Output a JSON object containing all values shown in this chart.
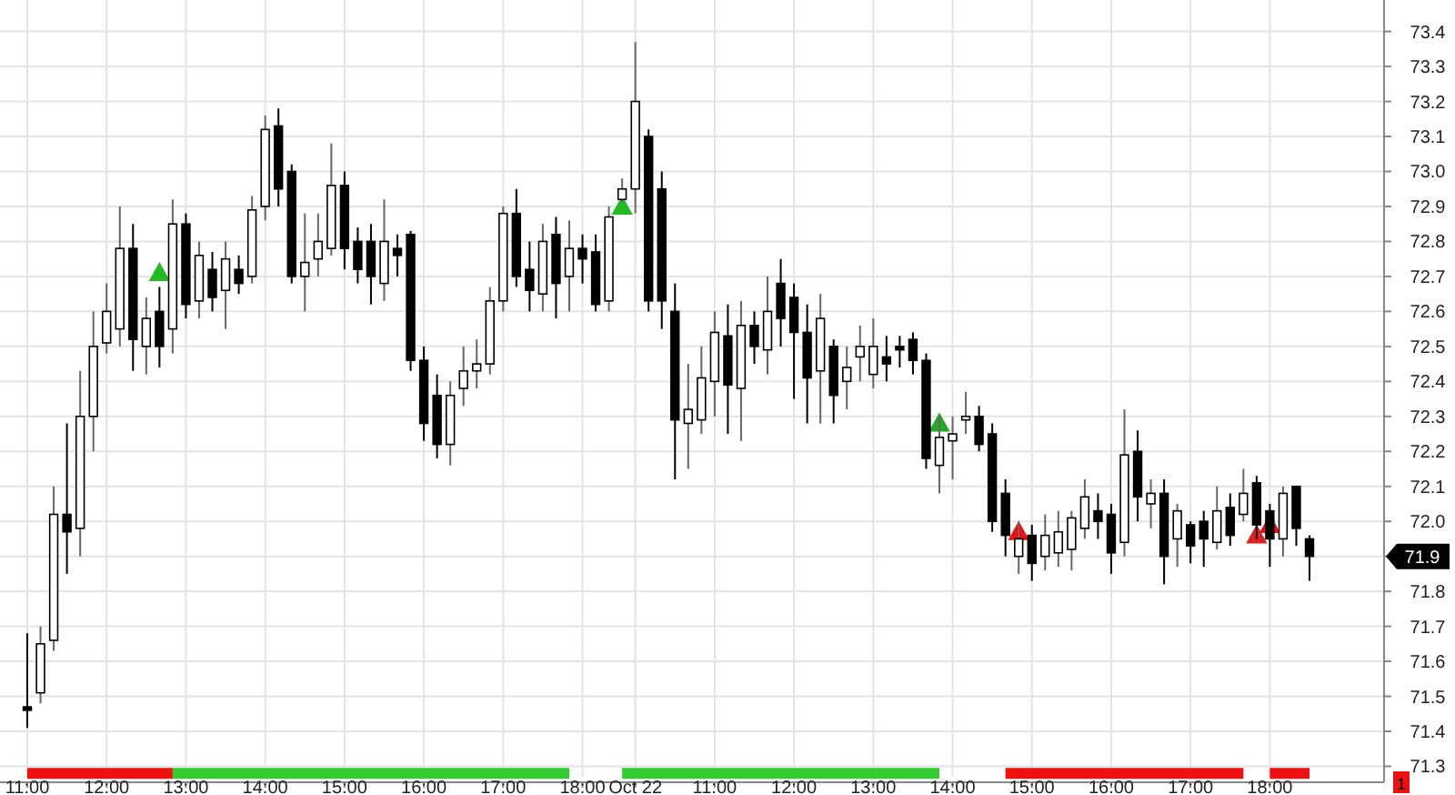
{
  "chart_data": {
    "type": "candlestick",
    "categories": [
      "11:00",
      null,
      null,
      null,
      null,
      null,
      "12:00",
      null,
      null,
      null,
      null,
      null,
      "13:00",
      null,
      null,
      null,
      null,
      null,
      "14:00",
      null,
      null,
      null,
      null,
      null,
      "15:00",
      null,
      null,
      null,
      null,
      null,
      "16:00",
      null,
      null,
      null,
      null,
      null,
      "17:00",
      null,
      null,
      null,
      null,
      null,
      "18:00",
      null,
      null,
      null,
      "Oct 22",
      null,
      null,
      null,
      null,
      null,
      "11:00",
      null,
      null,
      null,
      null,
      null,
      "12:00",
      null,
      null,
      null,
      null,
      null,
      "13:00",
      null,
      null,
      null,
      null,
      null,
      "14:00",
      null,
      null,
      null,
      null,
      null,
      "15:00",
      null,
      null,
      null,
      null,
      null,
      "16:00",
      null,
      null,
      null,
      null,
      null,
      "17:00",
      null,
      null,
      null,
      null,
      null,
      "18:00",
      null,
      null,
      null
    ],
    "ohlc": [
      [
        71.47,
        71.68,
        71.41,
        71.46
      ],
      [
        71.51,
        71.7,
        71.48,
        71.65
      ],
      [
        71.66,
        72.1,
        71.63,
        72.02
      ],
      [
        72.02,
        72.28,
        71.85,
        71.97
      ],
      [
        71.98,
        72.43,
        71.9,
        72.3
      ],
      [
        72.3,
        72.6,
        72.2,
        72.5
      ],
      [
        72.51,
        72.68,
        72.48,
        72.6
      ],
      [
        72.55,
        72.9,
        72.5,
        72.78
      ],
      [
        72.78,
        72.85,
        72.43,
        72.52
      ],
      [
        72.5,
        72.64,
        72.42,
        72.58
      ],
      [
        72.6,
        72.67,
        72.44,
        72.5
      ],
      [
        72.55,
        72.92,
        72.48,
        72.85
      ],
      [
        72.85,
        72.88,
        72.58,
        72.62
      ],
      [
        72.63,
        72.8,
        72.58,
        72.76
      ],
      [
        72.72,
        72.77,
        72.6,
        72.64
      ],
      [
        72.66,
        72.8,
        72.55,
        72.75
      ],
      [
        72.72,
        72.76,
        72.65,
        72.68
      ],
      [
        72.7,
        72.93,
        72.68,
        72.89
      ],
      [
        72.9,
        73.16,
        72.86,
        73.12
      ],
      [
        73.13,
        73.18,
        72.9,
        72.95
      ],
      [
        73.0,
        73.02,
        72.68,
        72.7
      ],
      [
        72.7,
        72.88,
        72.6,
        72.74
      ],
      [
        72.75,
        72.88,
        72.7,
        72.8
      ],
      [
        72.78,
        73.08,
        72.76,
        72.96
      ],
      [
        72.96,
        73.0,
        72.72,
        72.78
      ],
      [
        72.8,
        72.84,
        72.68,
        72.72
      ],
      [
        72.8,
        72.85,
        72.62,
        72.7
      ],
      [
        72.68,
        72.92,
        72.63,
        72.8
      ],
      [
        72.78,
        72.82,
        72.7,
        72.76
      ],
      [
        72.82,
        72.83,
        72.43,
        72.46
      ],
      [
        72.46,
        72.5,
        72.23,
        72.28
      ],
      [
        72.36,
        72.42,
        72.18,
        72.22
      ],
      [
        72.22,
        72.4,
        72.16,
        72.36
      ],
      [
        72.38,
        72.5,
        72.33,
        72.43
      ],
      [
        72.43,
        72.52,
        72.38,
        72.45
      ],
      [
        72.45,
        72.67,
        72.42,
        72.63
      ],
      [
        72.63,
        72.9,
        72.6,
        72.88
      ],
      [
        72.88,
        72.95,
        72.67,
        72.7
      ],
      [
        72.72,
        72.8,
        72.6,
        72.66
      ],
      [
        72.65,
        72.85,
        72.6,
        72.8
      ],
      [
        72.82,
        72.87,
        72.58,
        72.68
      ],
      [
        72.7,
        72.86,
        72.6,
        72.78
      ],
      [
        72.78,
        72.82,
        72.68,
        72.75
      ],
      [
        72.77,
        72.82,
        72.6,
        72.62
      ],
      [
        72.63,
        72.9,
        72.6,
        72.87
      ],
      [
        72.92,
        72.98,
        72.91,
        72.95
      ],
      [
        72.95,
        73.37,
        72.88,
        73.2
      ],
      [
        73.1,
        73.12,
        72.6,
        72.63
      ],
      [
        72.95,
        73.0,
        72.55,
        72.63
      ],
      [
        72.6,
        72.68,
        72.12,
        72.29
      ],
      [
        72.28,
        72.45,
        72.15,
        72.32
      ],
      [
        72.29,
        72.5,
        72.25,
        72.41
      ],
      [
        72.4,
        72.6,
        72.3,
        72.54
      ],
      [
        72.53,
        72.62,
        72.25,
        72.39
      ],
      [
        72.38,
        72.63,
        72.23,
        72.56
      ],
      [
        72.56,
        72.6,
        72.45,
        72.5
      ],
      [
        72.49,
        72.7,
        72.42,
        72.6
      ],
      [
        72.68,
        72.75,
        72.5,
        72.58
      ],
      [
        72.64,
        72.68,
        72.35,
        72.54
      ],
      [
        72.54,
        72.62,
        72.28,
        72.41
      ],
      [
        72.43,
        72.65,
        72.28,
        72.58
      ],
      [
        72.5,
        72.52,
        72.28,
        72.36
      ],
      [
        72.4,
        72.5,
        72.32,
        72.44
      ],
      [
        72.47,
        72.56,
        72.4,
        72.5
      ],
      [
        72.42,
        72.58,
        72.38,
        72.5
      ],
      [
        72.47,
        72.53,
        72.4,
        72.45
      ],
      [
        72.5,
        72.53,
        72.44,
        72.49
      ],
      [
        72.52,
        72.54,
        72.42,
        72.46
      ],
      [
        72.46,
        72.48,
        72.15,
        72.18
      ],
      [
        72.16,
        72.3,
        72.08,
        72.24
      ],
      [
        72.23,
        72.3,
        72.12,
        72.25
      ],
      [
        72.29,
        72.37,
        72.25,
        72.3
      ],
      [
        72.3,
        72.33,
        72.2,
        72.22
      ],
      [
        72.25,
        72.28,
        71.97,
        72.0
      ],
      [
        72.08,
        72.12,
        71.9,
        71.96
      ],
      [
        71.9,
        72.0,
        71.85,
        71.95
      ],
      [
        71.96,
        71.99,
        71.83,
        71.88
      ],
      [
        71.9,
        72.02,
        71.86,
        71.96
      ],
      [
        71.91,
        72.03,
        71.87,
        71.97
      ],
      [
        71.92,
        72.03,
        71.86,
        72.01
      ],
      [
        71.98,
        72.12,
        71.95,
        72.07
      ],
      [
        72.03,
        72.08,
        71.95,
        72.0
      ],
      [
        72.02,
        72.05,
        71.85,
        71.91
      ],
      [
        71.94,
        72.32,
        71.9,
        72.19
      ],
      [
        72.2,
        72.26,
        72.0,
        72.07
      ],
      [
        72.05,
        72.12,
        71.98,
        72.08
      ],
      [
        72.08,
        72.12,
        71.82,
        71.9
      ],
      [
        71.95,
        72.05,
        71.87,
        72.03
      ],
      [
        71.99,
        72.0,
        71.88,
        71.93
      ],
      [
        72.0,
        72.03,
        71.87,
        71.95
      ],
      [
        71.94,
        72.1,
        71.92,
        72.03
      ],
      [
        72.04,
        72.08,
        71.93,
        71.96
      ],
      [
        72.02,
        72.15,
        72.0,
        72.08
      ],
      [
        72.11,
        72.13,
        71.95,
        71.99
      ],
      [
        72.03,
        72.05,
        71.87,
        71.95
      ],
      [
        71.95,
        72.1,
        71.9,
        72.08
      ],
      [
        72.1,
        72.1,
        71.93,
        71.98
      ],
      [
        71.95,
        71.96,
        71.83,
        71.9
      ]
    ],
    "series": [
      {
        "type": "scatter",
        "color": "#22bb22",
        "marker": "triangle",
        "values": [
          null,
          null,
          null,
          null,
          null,
          null,
          null,
          null,
          null,
          null,
          72.71,
          null,
          null,
          null,
          null,
          null,
          null,
          null,
          null,
          null,
          null,
          null,
          null,
          null,
          null,
          null,
          null,
          null,
          null,
          null,
          null,
          null,
          null,
          null,
          null,
          null,
          null,
          null,
          null,
          null,
          null,
          null,
          null,
          null,
          null,
          72.9,
          null,
          null,
          null,
          null,
          null,
          null,
          null,
          null,
          null,
          null,
          null,
          null,
          null,
          null,
          null,
          null,
          null,
          null,
          null,
          null,
          null,
          null,
          null,
          null,
          null,
          null,
          null,
          null,
          null,
          null,
          null,
          null,
          null,
          null,
          null,
          null,
          null,
          null,
          null,
          null,
          null,
          null,
          null,
          null,
          null,
          null,
          null,
          null,
          null,
          null,
          null,
          null
        ]
      },
      {
        "type": "scatter",
        "color": "#22aa22",
        "marker": "triangle",
        "values": [
          null,
          null,
          null,
          null,
          null,
          null,
          null,
          null,
          null,
          null,
          null,
          null,
          null,
          null,
          null,
          null,
          null,
          null,
          null,
          null,
          null,
          null,
          null,
          null,
          null,
          null,
          null,
          null,
          null,
          null,
          null,
          null,
          null,
          null,
          null,
          null,
          null,
          null,
          null,
          null,
          null,
          null,
          null,
          null,
          null,
          null,
          null,
          null,
          null,
          null,
          null,
          null,
          null,
          null,
          null,
          null,
          null,
          null,
          null,
          null,
          null,
          null,
          null,
          null,
          null,
          null,
          null,
          null,
          null,
          72.28,
          null,
          null,
          null,
          null,
          null,
          null,
          null,
          null,
          null,
          null,
          null,
          null,
          null,
          null,
          null,
          null,
          null,
          null,
          null,
          null,
          null,
          null,
          null,
          null,
          null,
          null,
          null,
          null
        ]
      },
      {
        "type": "scatter",
        "color": "#ee1111",
        "marker": "triangle",
        "values": [
          null,
          null,
          null,
          null,
          null,
          null,
          null,
          null,
          null,
          null,
          null,
          null,
          null,
          null,
          null,
          null,
          null,
          null,
          null,
          null,
          null,
          null,
          null,
          null,
          null,
          null,
          null,
          null,
          null,
          null,
          null,
          null,
          null,
          null,
          null,
          null,
          null,
          null,
          null,
          null,
          null,
          null,
          null,
          null,
          null,
          null,
          null,
          null,
          null,
          null,
          null,
          null,
          null,
          null,
          null,
          null,
          null,
          null,
          null,
          null,
          null,
          null,
          null,
          null,
          null,
          null,
          null,
          null,
          null,
          null,
          null,
          null,
          null,
          null,
          null,
          71.97,
          null,
          null,
          null,
          null,
          null,
          null,
          null,
          null,
          null,
          null,
          null,
          null,
          null,
          null,
          null,
          null,
          null,
          null,
          71.99,
          null,
          null,
          null
        ]
      },
      {
        "type": "scatter",
        "color": "#dd2222",
        "marker": "triangle",
        "values": [
          null,
          null,
          null,
          null,
          null,
          null,
          null,
          null,
          null,
          null,
          null,
          null,
          null,
          null,
          null,
          null,
          null,
          null,
          null,
          null,
          null,
          null,
          null,
          null,
          null,
          null,
          null,
          null,
          null,
          null,
          null,
          null,
          null,
          null,
          null,
          null,
          null,
          null,
          null,
          null,
          null,
          null,
          null,
          null,
          null,
          null,
          null,
          null,
          null,
          null,
          null,
          null,
          null,
          null,
          null,
          null,
          null,
          null,
          null,
          null,
          null,
          null,
          null,
          null,
          null,
          null,
          null,
          null,
          null,
          null,
          null,
          null,
          null,
          null,
          null,
          null,
          null,
          null,
          null,
          null,
          null,
          null,
          null,
          null,
          null,
          null,
          null,
          null,
          null,
          null,
          null,
          null,
          null,
          71.96,
          null,
          null,
          null,
          null
        ]
      },
      {
        "type": "line",
        "color": "#ee1111",
        "values": [
          71.28,
          71.28,
          71.28,
          71.28,
          71.28,
          71.28,
          71.28,
          71.28,
          71.28,
          71.28,
          71.28,
          71.28,
          null,
          null,
          null,
          null,
          null,
          null,
          null,
          null,
          null,
          null,
          null,
          null,
          null,
          null,
          null,
          null,
          null,
          null,
          null,
          null,
          null,
          null,
          null,
          null,
          null,
          null,
          null,
          null,
          null,
          null,
          null,
          null,
          null,
          null,
          null,
          null,
          null,
          null,
          null,
          null,
          null,
          null,
          null,
          null,
          null,
          null,
          null,
          null,
          null,
          null,
          null,
          null,
          null,
          null,
          null,
          null,
          null,
          null,
          null,
          null,
          null,
          null,
          71.28,
          71.28,
          71.28,
          71.28,
          71.28,
          71.28,
          71.28,
          71.28,
          71.28,
          71.28,
          71.28,
          71.28,
          71.28,
          71.28,
          71.28,
          71.28,
          71.28,
          71.28,
          71.28,
          null,
          71.28,
          71.28,
          71.28,
          71.28
        ]
      },
      {
        "type": "line",
        "color": "#33cc33",
        "values": [
          null,
          null,
          null,
          null,
          null,
          null,
          null,
          null,
          null,
          null,
          null,
          71.28,
          71.28,
          71.28,
          71.28,
          71.28,
          71.28,
          71.28,
          71.28,
          71.28,
          71.28,
          71.28,
          71.28,
          71.28,
          71.28,
          71.28,
          71.28,
          71.28,
          71.28,
          71.28,
          71.28,
          71.28,
          71.28,
          71.28,
          71.28,
          71.28,
          71.28,
          71.28,
          71.28,
          71.28,
          71.28,
          71.28,
          null,
          null,
          null,
          71.28,
          71.28,
          71.28,
          71.28,
          71.28,
          71.28,
          71.28,
          71.28,
          71.28,
          71.28,
          71.28,
          71.28,
          71.28,
          71.28,
          71.28,
          71.28,
          71.28,
          71.28,
          71.28,
          71.28,
          71.28,
          71.28,
          71.28,
          71.28,
          71.28,
          null,
          null,
          null,
          null,
          null,
          null,
          null,
          null,
          null,
          null,
          null,
          null,
          null,
          null,
          null,
          null,
          null,
          null,
          null,
          null,
          null,
          null,
          null,
          null,
          null,
          null,
          null,
          null
        ]
      }
    ],
    "annotations": [
      "71.9",
      "1"
    ],
    "ylim": [
      71.27,
      73.49
    ],
    "yticks": [
      71.3,
      71.4,
      71.5,
      71.6,
      71.7,
      71.8,
      71.9,
      {
        "value": 72,
        "label": "72.0"
      },
      72.1,
      72.2,
      72.3,
      72.4,
      72.5,
      72.6,
      72.7,
      72.8,
      72.9,
      {
        "value": 73,
        "label": "73.0"
      },
      73.1,
      73.2,
      73.3,
      73.4
    ],
    "grid": true
  }
}
